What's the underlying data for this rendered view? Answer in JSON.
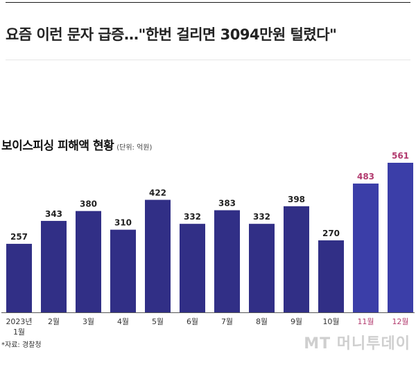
{
  "article": {
    "headline": "요즘 이런 문자 급증…\"한번 걸리면 3094만원 털렸다\""
  },
  "chart_title": "보이스피싱 피해액 현황",
  "chart_unit": "(단위: 억원)",
  "source": "*자료: 경찰청",
  "watermark": "MT 머니투데이",
  "chart_data": {
    "type": "bar",
    "title": "보이스피싱 피해액 현황",
    "unit": "(단위: 억원)",
    "categories": [
      [
        "2023년",
        "1월"
      ],
      [
        "2월"
      ],
      [
        "3월"
      ],
      [
        "4월"
      ],
      [
        "5월"
      ],
      [
        "6월"
      ],
      [
        "7월"
      ],
      [
        "8월"
      ],
      [
        "9월"
      ],
      [
        "10월"
      ],
      [
        "11월"
      ],
      [
        "12월"
      ]
    ],
    "values": [
      257,
      343,
      380,
      310,
      422,
      332,
      383,
      332,
      398,
      270,
      483,
      561
    ],
    "highlight_indices": [
      10,
      11
    ],
    "bar_color": "#312f86",
    "highlight_bar_color": "#3b3ea8",
    "highlight_label_color": "#b23a6e",
    "label_color": "#222222",
    "ylim": [
      0,
      600
    ],
    "grid": false,
    "legend": "none"
  }
}
